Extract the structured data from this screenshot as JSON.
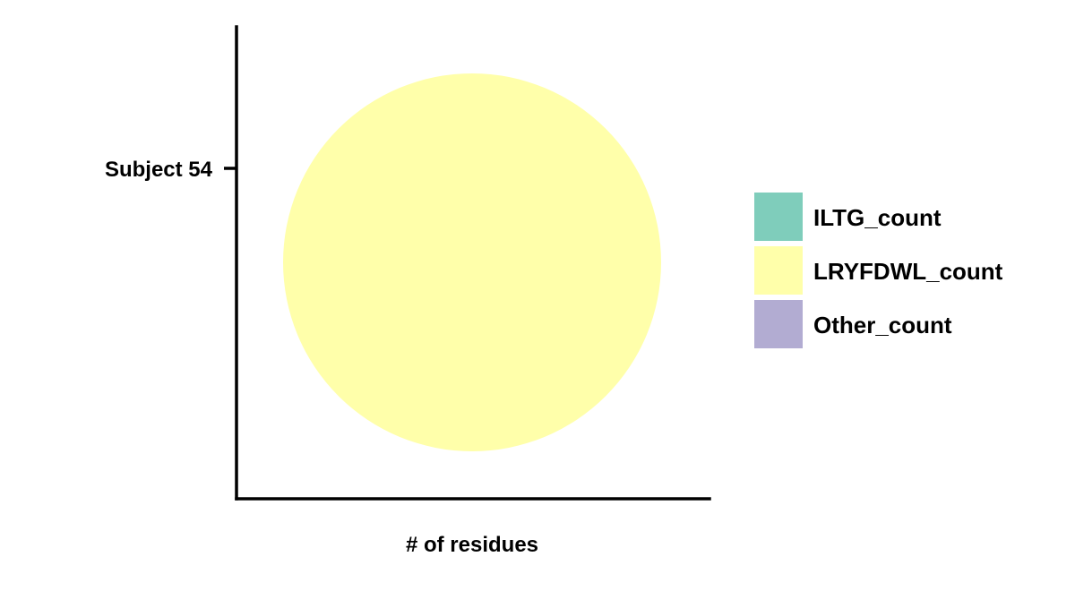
{
  "chart_data": {
    "type": "pie",
    "xlabel": "# of residues",
    "ylabel": "",
    "categories": [
      "Subject 54"
    ],
    "series": [
      {
        "name": "ILTG_count",
        "values": [
          0
        ],
        "color": "#7fcdbb"
      },
      {
        "name": "LRYFDWL_count",
        "values": [
          1
        ],
        "color": "#ffffaa"
      },
      {
        "name": "Other_count",
        "values": [
          0
        ],
        "color": "#b2acd2"
      }
    ],
    "legend": {
      "position": "right",
      "entries": [
        "ILTG_count",
        "LRYFDWL_count",
        "Other_count"
      ]
    },
    "grid": false
  }
}
